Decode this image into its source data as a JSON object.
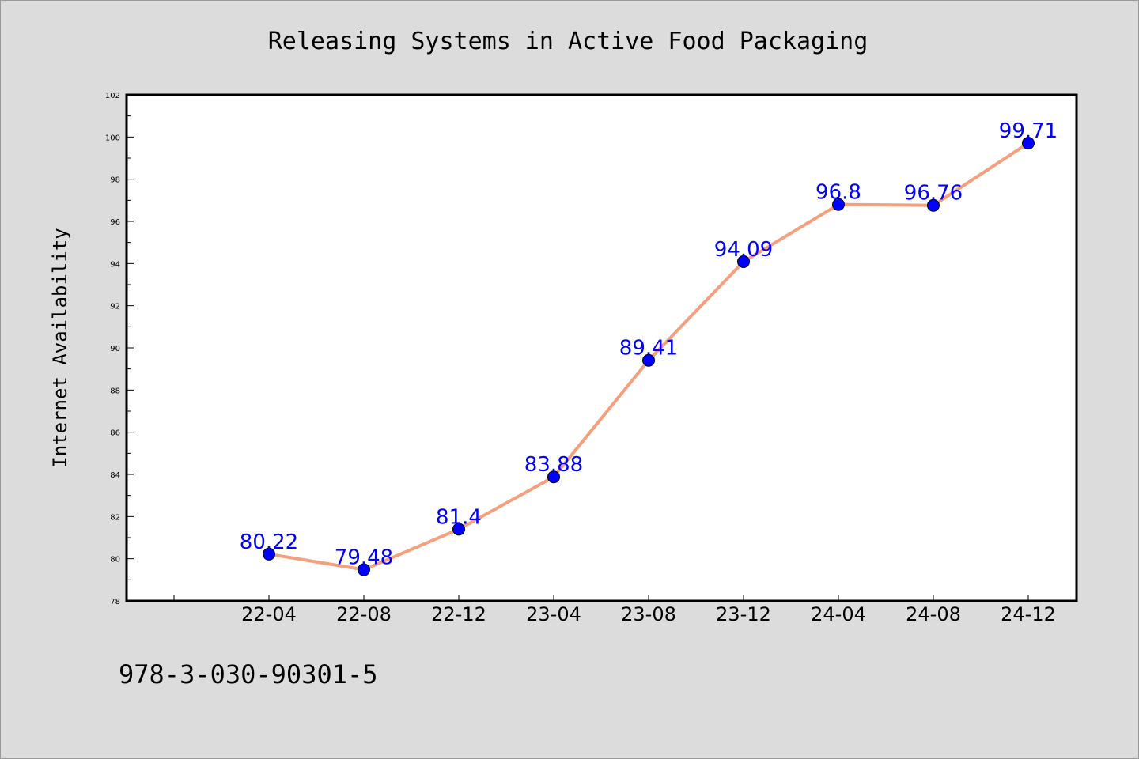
{
  "chart_data": {
    "type": "line",
    "title": "Releasing Systems in Active Food Packaging",
    "xlabel": "",
    "ylabel": "Internet Availability",
    "categories": [
      "22-04",
      "22-08",
      "22-12",
      "23-04",
      "23-08",
      "23-12",
      "24-04",
      "24-08",
      "24-12"
    ],
    "values": [
      80.22,
      79.48,
      81.4,
      83.88,
      89.41,
      94.09,
      96.8,
      96.76,
      99.71
    ],
    "value_labels": [
      "80.22",
      "79.48",
      "81.4",
      "83.88",
      "89.41",
      "94.09",
      "96.8",
      "96.76",
      "99.71"
    ],
    "ylim": [
      78,
      102
    ],
    "y_ticks": [
      78,
      80,
      82,
      84,
      86,
      88,
      90,
      92,
      94,
      96,
      98,
      100,
      102
    ],
    "grid": false,
    "line_color": "#f4a07e",
    "marker_color": "#0000ff",
    "label_color": "#0000ff"
  },
  "footer_text": "978-3-030-90301-5"
}
